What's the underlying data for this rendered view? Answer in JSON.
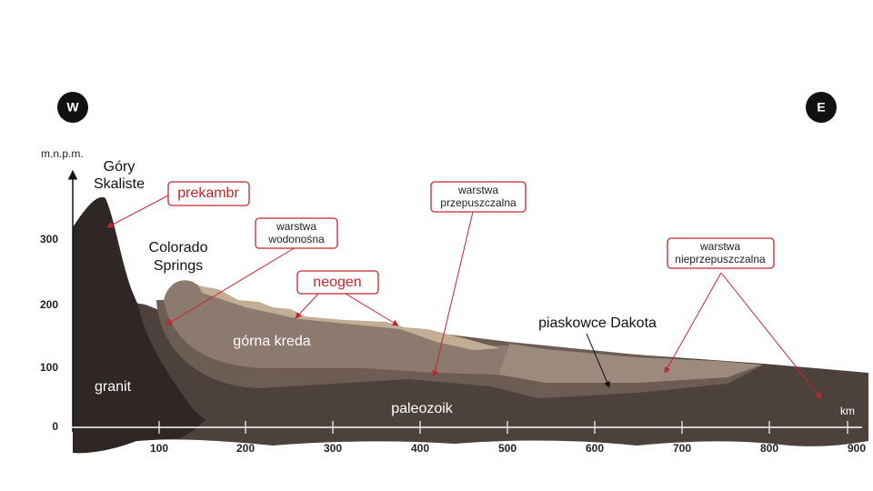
{
  "compass": {
    "west": "W",
    "east": "E"
  },
  "axes": {
    "y_label": "m.n.p.m.",
    "y_ticks": [
      300,
      200,
      100,
      0
    ],
    "x_label": "km",
    "x_ticks": [
      100,
      200,
      300,
      400,
      500,
      600,
      700,
      800,
      900
    ]
  },
  "labels": {
    "mountains": [
      "Góry",
      "Skaliste"
    ],
    "city": [
      "Colorado",
      "Springs"
    ],
    "granite": "granit",
    "upper_cretaceous": "górna kreda",
    "paleozoic": "paleozoik",
    "dakota": "piaskowce Dakota"
  },
  "callouts": {
    "precambrian": "prekambr",
    "aquifer": [
      "warstwa",
      "wodonośna"
    ],
    "neogene": "neogen",
    "permeable": [
      "warstwa",
      "przepuszczalna"
    ],
    "impermeable": [
      "warstwa",
      "nieprzepuszczalna"
    ]
  }
}
